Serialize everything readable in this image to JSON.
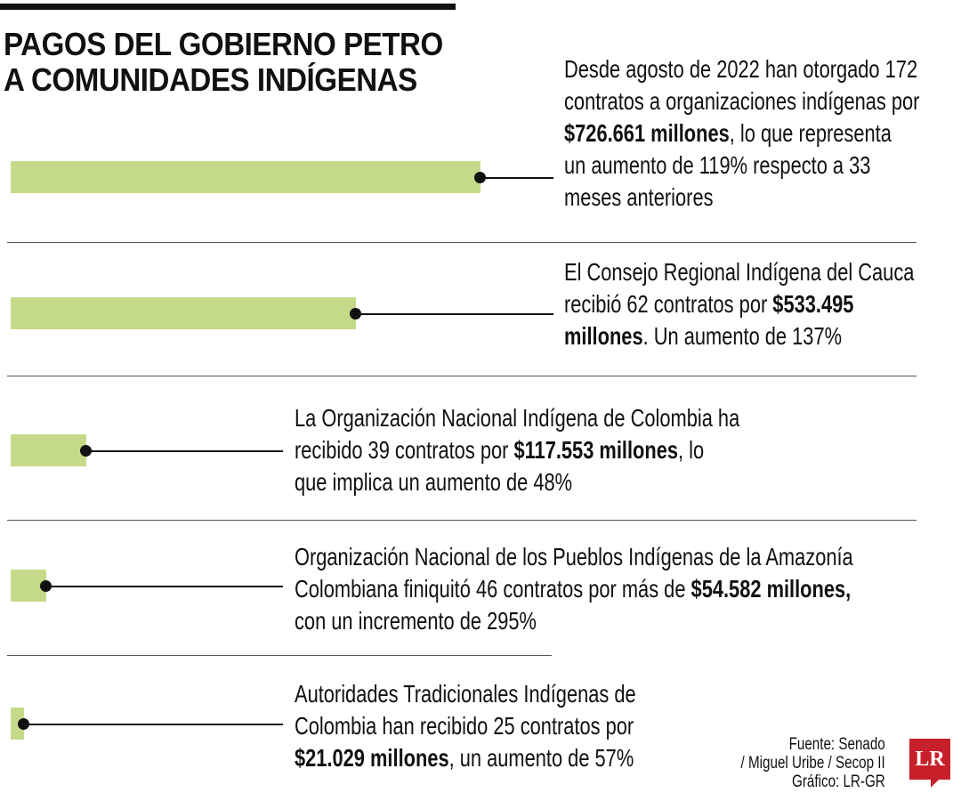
{
  "chart_data": {
    "type": "bar",
    "orientation": "horizontal",
    "title": [
      "PAGOS DEL GOBIERNO PETRO",
      "A COMUNIDADES INDÍGENAS"
    ],
    "unit": "millones",
    "bar_color": "#c5da88",
    "values": [
      726.661,
      533.495,
      117.553,
      54.582,
      21.029
    ],
    "items": [
      {
        "lines": [
          [
            {
              "t": "Desde agosto de 2022 han otorgado 172"
            }
          ],
          [
            {
              "t": "contratos a organizaciones indígenas por"
            }
          ],
          [
            {
              "t": "$726.661 millones",
              "b": true
            },
            {
              "t": ", lo que representa"
            }
          ],
          [
            {
              "t": "un aumento de 119% respecto a 33"
            }
          ],
          [
            {
              "t": "meses anteriores"
            }
          ]
        ]
      },
      {
        "lines": [
          [
            {
              "t": "El Consejo Regional Indígena del Cauca"
            }
          ],
          [
            {
              "t": "recibió 62 contratos por "
            },
            {
              "t": "$533.495",
              "b": true
            }
          ],
          [
            {
              "t": "millones",
              "b": true
            },
            {
              "t": ". Un aumento de 137%"
            }
          ]
        ]
      },
      {
        "lines": [
          [
            {
              "t": "La Organización Nacional Indígena de Colombia ha"
            }
          ],
          [
            {
              "t": "recibido 39 contratos por "
            },
            {
              "t": "$117.553 millones",
              "b": true
            },
            {
              "t": ", lo"
            }
          ],
          [
            {
              "t": "que implica un aumento de 48%"
            }
          ]
        ]
      },
      {
        "lines": [
          [
            {
              "t": "Organización Nacional de los Pueblos Indígenas de la Amazonía"
            }
          ],
          [
            {
              "t": "Colombiana finiquitó 46 contratos por más de "
            },
            {
              "t": "$54.582 millones,",
              "b": true
            }
          ],
          [
            {
              "t": "con un incremento de 295%"
            }
          ]
        ]
      },
      {
        "lines": [
          [
            {
              "t": "Autoridades Tradicionales Indígenas de"
            }
          ],
          [
            {
              "t": "Colombia han recibido 25 contratos por"
            }
          ],
          [
            {
              "t": "$21.029 millones",
              "b": true
            },
            {
              "t": ", un aumento de 57%"
            }
          ]
        ]
      }
    ]
  },
  "source": [
    "Fuente: Senado",
    "/ Miguel Uribe / Secop II",
    "Gráfico: LR-GR"
  ],
  "logo": "LR"
}
